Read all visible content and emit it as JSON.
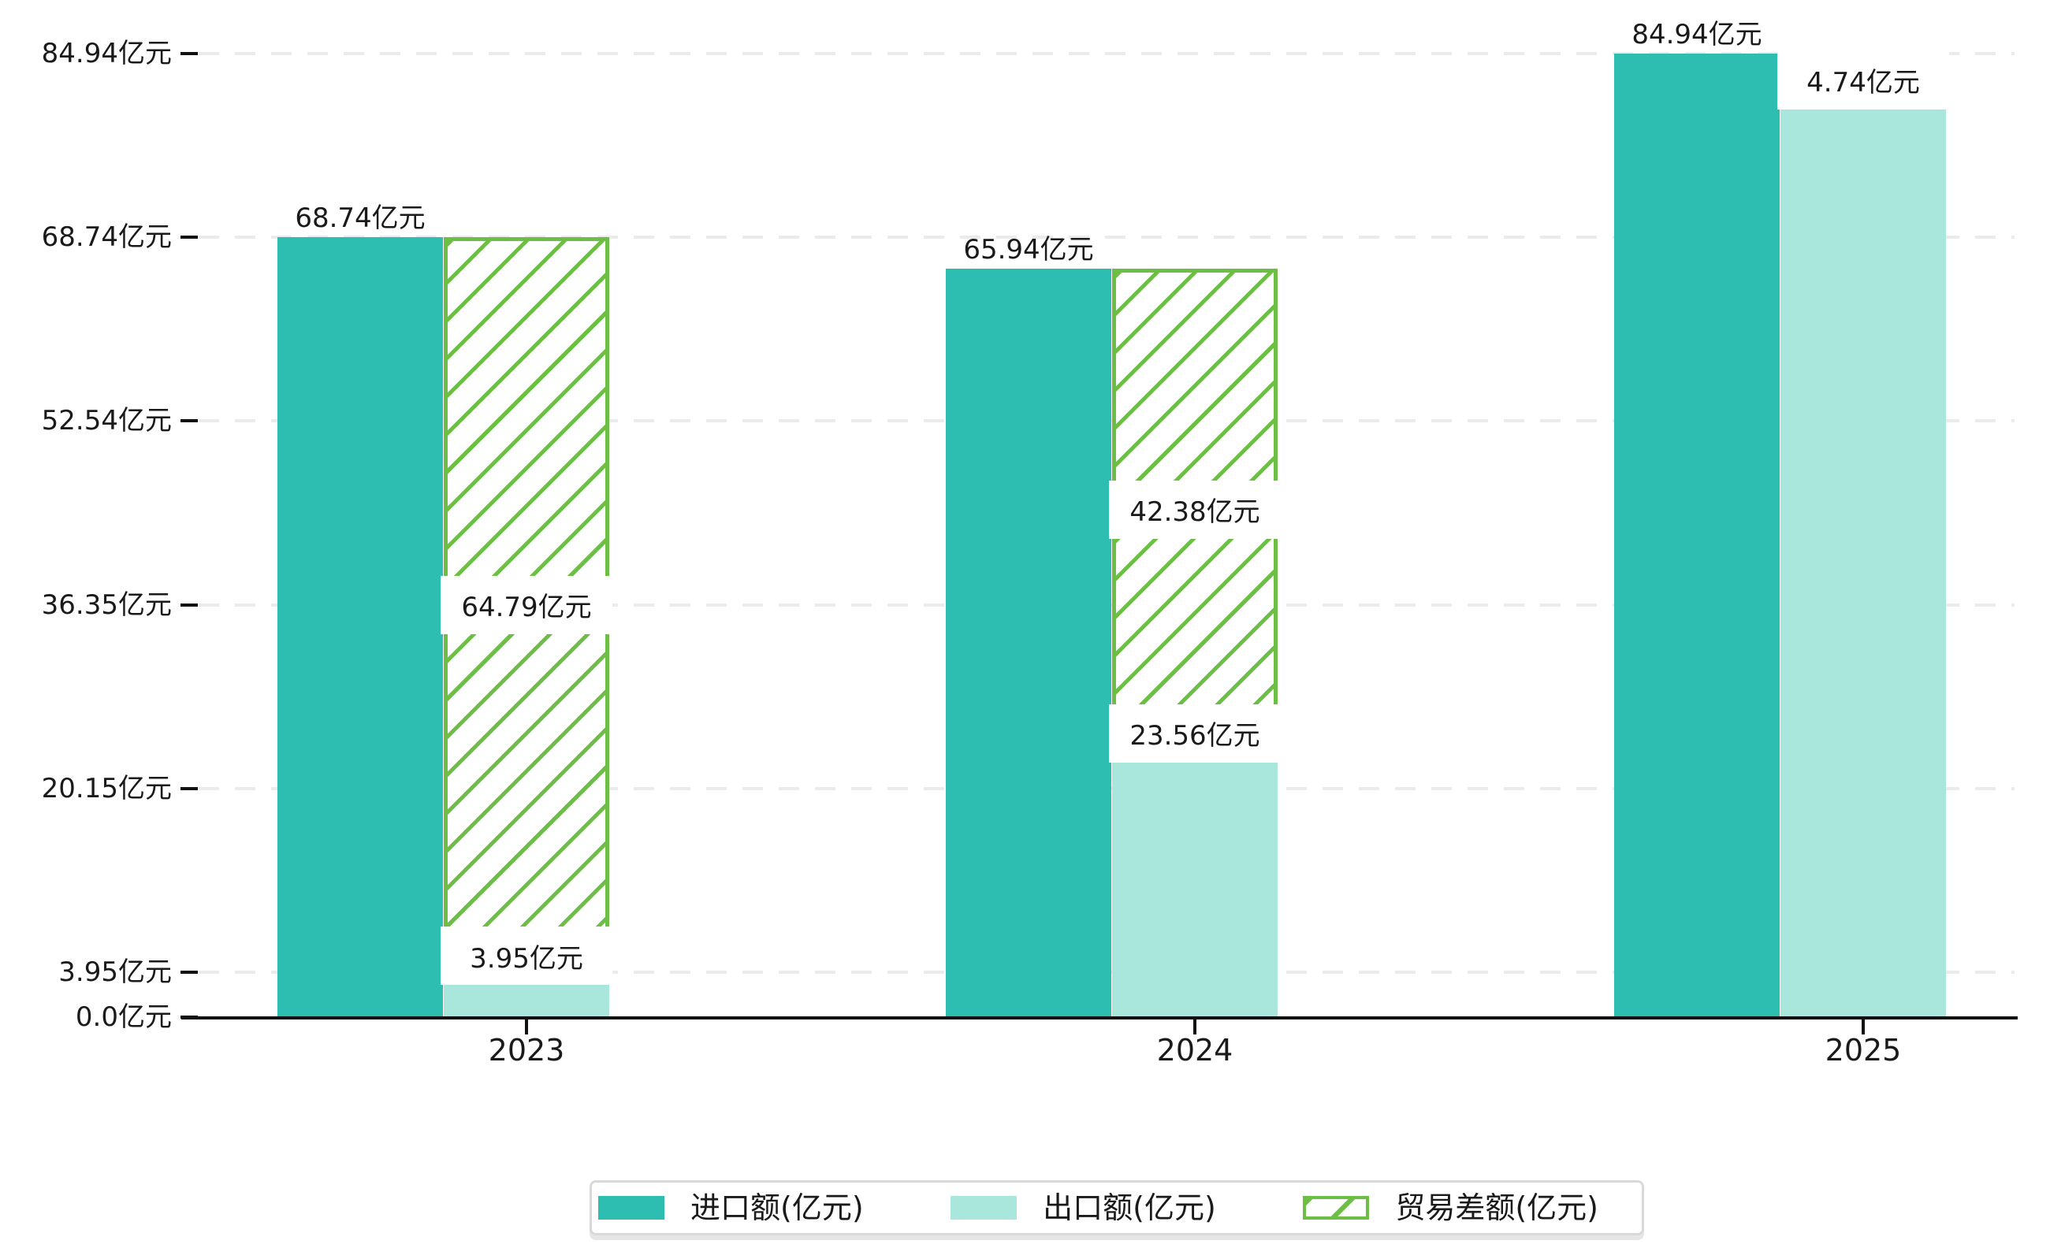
{
  "chart_data": {
    "type": "bar",
    "title": "",
    "categories": [
      "2023",
      "2024",
      "2025"
    ],
    "series": [
      {
        "name": "进口额(亿元)",
        "style": "solid",
        "color": "#2EBEB1",
        "values": [
          68.74,
          65.94,
          84.94
        ],
        "data_labels": [
          "68.74亿元",
          "65.94亿元",
          "84.94亿元"
        ]
      },
      {
        "name": "出口额(亿元)",
        "style": "solid",
        "color": "#A9E6DB",
        "values": [
          3.95,
          23.56,
          80.2
        ],
        "data_labels": [
          "3.95亿元",
          "23.56亿元",
          ""
        ]
      },
      {
        "name": "贸易差额(亿元)",
        "style": "hatched-floating",
        "color": "#6CBE45",
        "values": [
          64.79,
          42.38,
          4.74
        ],
        "data_labels": [
          "64.79亿元",
          "42.38亿元",
          "4.74亿元"
        ]
      }
    ],
    "y_ticks": [
      {
        "value": 0.0,
        "label": "0.0亿元"
      },
      {
        "value": 3.95,
        "label": "3.95亿元"
      },
      {
        "value": 20.15,
        "label": "20.15亿元"
      },
      {
        "value": 36.35,
        "label": "36.35亿元"
      },
      {
        "value": 52.54,
        "label": "52.54亿元"
      },
      {
        "value": 68.74,
        "label": "68.74亿元"
      },
      {
        "value": 84.94,
        "label": "84.94亿元"
      }
    ],
    "ylim": [
      0,
      84.94
    ],
    "xlabel": "",
    "ylabel": "",
    "grid": "horizontal-dashed",
    "legend_position": "bottom"
  },
  "colors": {
    "import_bar": "#2EBEB1",
    "export_bar": "#A9E6DB",
    "balance_hatch": "#6CBE45",
    "gridline": "#ebebeb",
    "axis": "#111111",
    "text": "#1a1a1a",
    "legend_border": "#d9d9d9",
    "background": "#ffffff"
  }
}
